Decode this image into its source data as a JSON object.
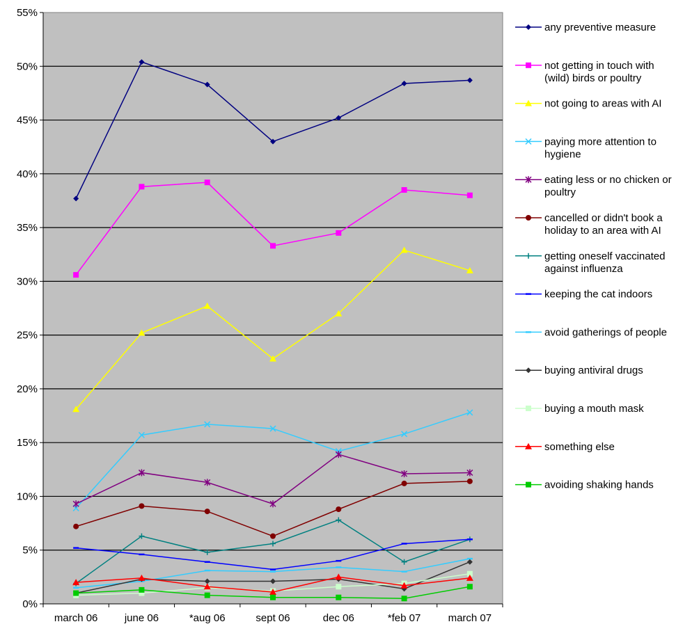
{
  "chart_data": {
    "type": "line",
    "categories": [
      "march 06",
      "june 06",
      "*aug 06",
      "sept 06",
      "dec 06",
      "*feb 07",
      "march 07"
    ],
    "y_ticks": [
      "0%",
      "5%",
      "10%",
      "15%",
      "20%",
      "25%",
      "30%",
      "35%",
      "40%",
      "45%",
      "50%",
      "55%"
    ],
    "ylim": [
      0,
      55
    ],
    "y_unit": "%",
    "grid": true,
    "plot_background": "#c0c0c0",
    "legend_position": "right",
    "series": [
      {
        "name": "any preventive measure",
        "color": "#000080",
        "marker": "diamond",
        "values": [
          37.7,
          50.4,
          48.3,
          43.0,
          45.2,
          48.4,
          48.7
        ]
      },
      {
        "name": "not getting in touch with (wild) birds or poultry",
        "color": "#ff00ff",
        "marker": "square",
        "values": [
          30.6,
          38.8,
          39.2,
          33.3,
          34.5,
          38.5,
          38.0
        ]
      },
      {
        "name": "not going to areas with AI",
        "color": "#ffff00",
        "marker": "triangle",
        "values": [
          18.1,
          25.2,
          27.7,
          22.8,
          27.0,
          32.9,
          31.0
        ]
      },
      {
        "name": "paying more attention to hygiene",
        "color": "#33ccff",
        "marker": "x",
        "values": [
          8.9,
          15.7,
          16.7,
          16.3,
          14.2,
          15.8,
          17.8
        ]
      },
      {
        "name": "eating less or no chicken or poultry",
        "color": "#800080",
        "marker": "asterisk",
        "values": [
          9.3,
          12.2,
          11.3,
          9.3,
          13.9,
          12.1,
          12.2
        ]
      },
      {
        "name": "cancelled or didn't book a holiday to an area with AI",
        "color": "#800000",
        "marker": "circle",
        "values": [
          7.2,
          9.1,
          8.6,
          6.3,
          8.8,
          11.2,
          11.4
        ]
      },
      {
        "name": "getting oneself vaccinated against influenza",
        "color": "#008080",
        "marker": "plus",
        "values": [
          1.9,
          6.3,
          4.8,
          5.6,
          7.8,
          3.9,
          6.0
        ]
      },
      {
        "name": "keeping the cat indoors",
        "color": "#0000ff",
        "marker": "dash",
        "values": [
          5.2,
          4.6,
          3.9,
          3.2,
          4.0,
          5.6,
          6.0
        ]
      },
      {
        "name": "avoid gatherings of people",
        "color": "#33ccff",
        "marker": "dash",
        "values": [
          1.5,
          2.1,
          3.1,
          3.0,
          3.4,
          3.0,
          4.2
        ]
      },
      {
        "name": "buying antiviral drugs",
        "color": "#333333",
        "marker": "diamond",
        "values": [
          1.0,
          2.3,
          2.1,
          2.1,
          2.3,
          1.4,
          3.9
        ]
      },
      {
        "name": "buying a mouth mask",
        "color": "#ccffcc",
        "marker": "square",
        "values": [
          0.8,
          1.0,
          1.5,
          1.2,
          1.6,
          1.9,
          2.8
        ]
      },
      {
        "name": "something else",
        "color": "#ff0000",
        "marker": "triangle",
        "values": [
          2.0,
          2.4,
          1.6,
          1.1,
          2.5,
          1.7,
          2.4
        ]
      },
      {
        "name": "avoiding shaking hands",
        "color": "#00cc00",
        "marker": "square",
        "values": [
          1.0,
          1.3,
          0.8,
          0.6,
          0.6,
          0.5,
          1.6
        ]
      }
    ]
  }
}
